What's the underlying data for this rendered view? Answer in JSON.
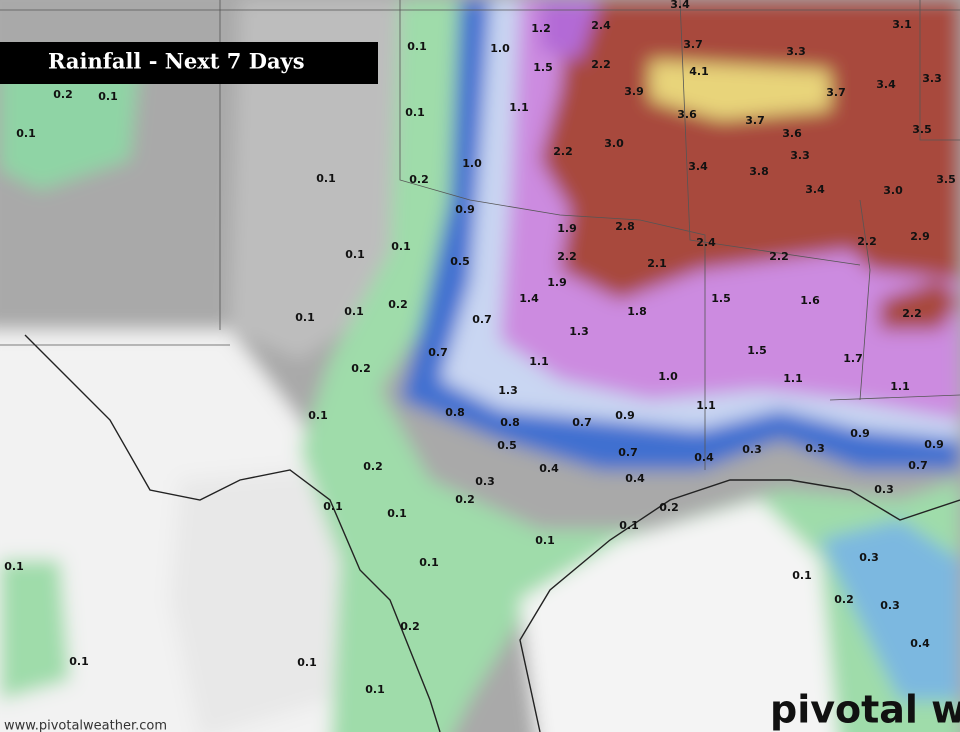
{
  "title": "Rainfall - Next 7 Days",
  "labels": [
    "1.2",
    "2.4",
    "3.4",
    "3.1",
    "0.1",
    "1.0",
    "1.5",
    "2.2",
    "3.7",
    "3.3",
    "4.1",
    "3.9",
    "3.7",
    "3.4",
    "3.3",
    "0.2",
    "0.1",
    "0.1",
    "1.1",
    "3.6",
    "3.7",
    "3.5",
    "0.1",
    "3.6",
    "3.0",
    "2.2",
    "3.3",
    "1.0",
    "3.4",
    "3.8",
    "3.5",
    "0.1",
    "0.2",
    "3.4",
    "3.0",
    "0.9",
    "1.9",
    "2.8",
    "2.4",
    "2.2",
    "2.9",
    "0.1",
    "0.1",
    "0.5",
    "2.2",
    "2.1",
    "2.2",
    "1.9",
    "1.4",
    "1.5",
    "1.6",
    "0.2",
    "0.1",
    "0.1",
    "1.8",
    "2.2",
    "0.7",
    "1.3",
    "0.7",
    "1.5",
    "1.7",
    "0.2",
    "1.1",
    "1.0",
    "1.1",
    "1.1",
    "1.3",
    "1.1",
    "0.8",
    "0.8",
    "0.7",
    "0.9",
    "0.1",
    "0.9",
    "0.5",
    "0.7",
    "0.3",
    "0.3",
    "0.9",
    "0.4",
    "0.7",
    "0.2",
    "0.4",
    "0.3",
    "0.4",
    "0.3",
    "0.2",
    "0.1",
    "0.2",
    "0.1",
    "0.1",
    "0.1",
    "0.1",
    "0.3",
    "0.1",
    "0.1",
    "0.2",
    "0.3",
    "0.2",
    "0.4",
    "0.1",
    "0.1",
    "0.1"
  ],
  "watermark": "www.pivotalweather.com",
  "logo": "pivotal w"
}
